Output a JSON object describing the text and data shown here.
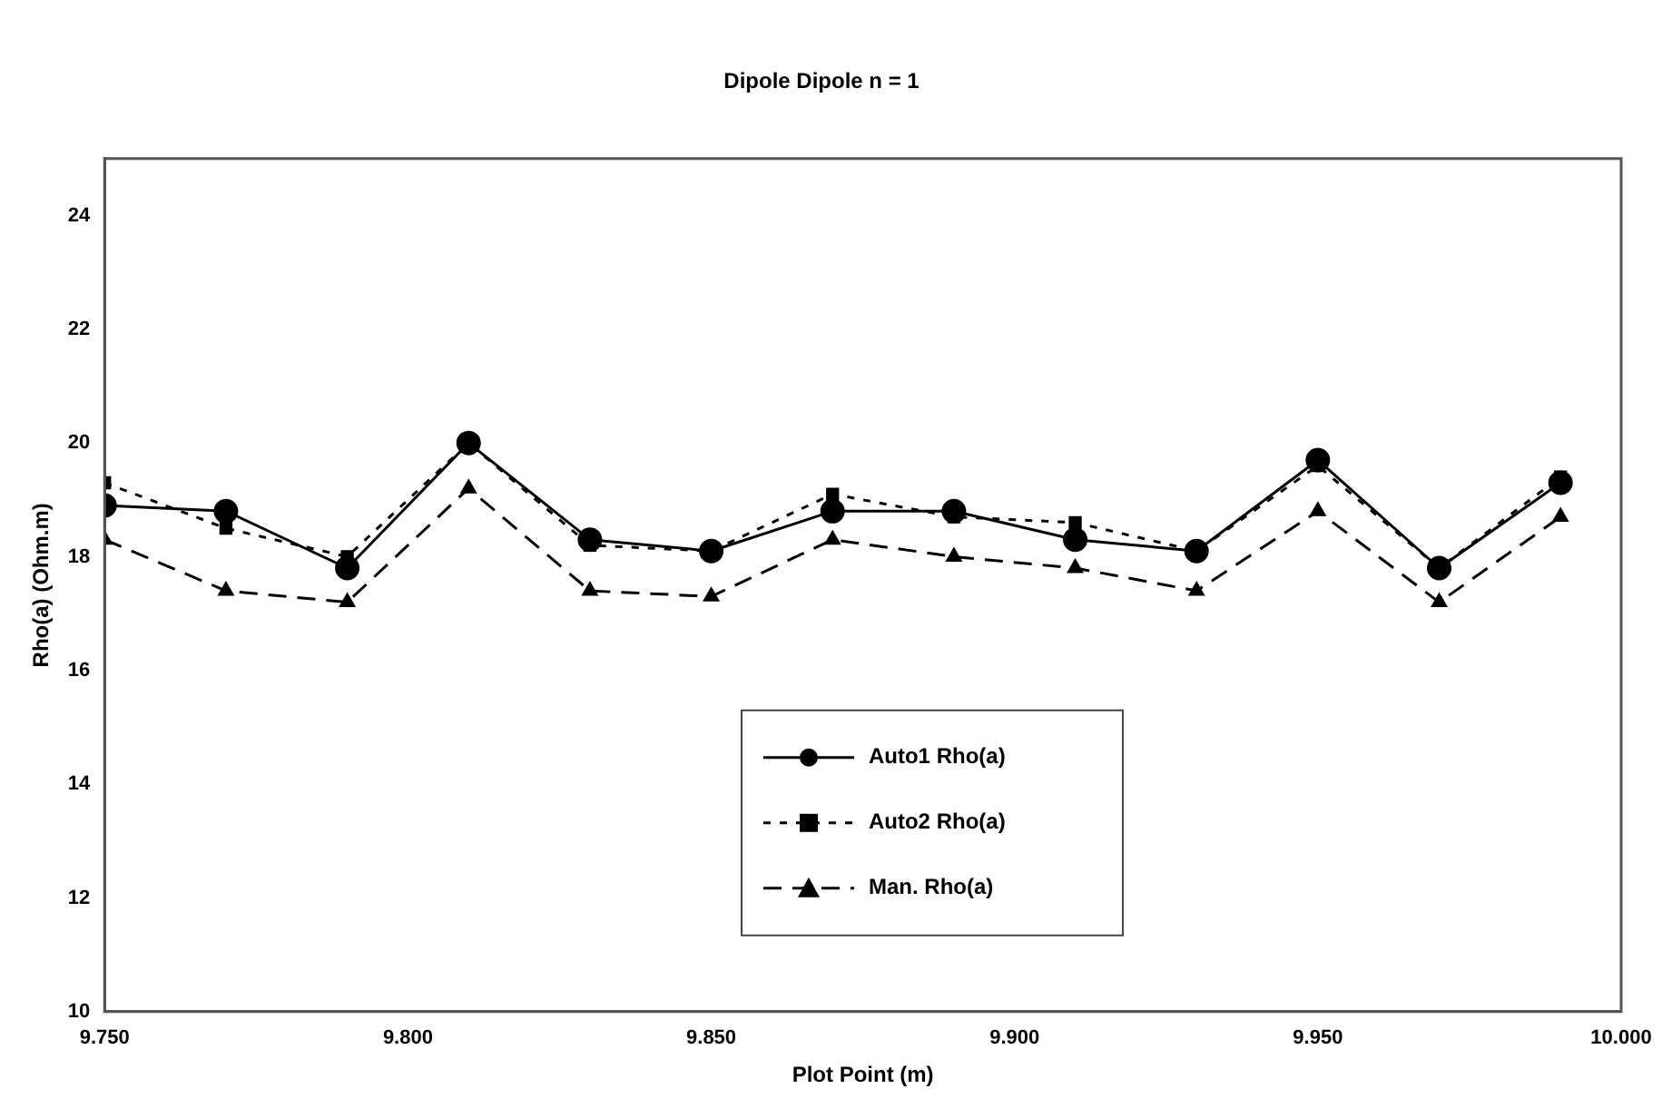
{
  "chart_data": {
    "type": "line",
    "title": "Dipole Dipole n = 1",
    "xlabel": "Plot Point (m)",
    "ylabel": "Rho(a) (Ohm.m)",
    "x": [
      9.75,
      9.77,
      9.79,
      9.81,
      9.83,
      9.85,
      9.87,
      9.89,
      9.91,
      9.93,
      9.95,
      9.97,
      9.99
    ],
    "xlim": [
      9.75,
      10.0
    ],
    "xticks": [
      {
        "value": 9.75,
        "label": "9.750"
      },
      {
        "value": 9.8,
        "label": "9.800"
      },
      {
        "value": 9.85,
        "label": "9.850"
      },
      {
        "value": 9.9,
        "label": "9.900"
      },
      {
        "value": 9.95,
        "label": "9.950"
      },
      {
        "value": 10.0,
        "label": "10.000"
      }
    ],
    "ylim": [
      10,
      25
    ],
    "yticks": [
      10,
      12,
      14,
      16,
      18,
      20,
      22,
      24
    ],
    "grid": false,
    "legend": "bottom",
    "series": [
      {
        "name": "Auto1 Rho(a)",
        "color": "#000000",
        "marker": "circle",
        "line_style": "solid",
        "values": [
          18.9,
          18.8,
          17.8,
          20.0,
          18.3,
          18.1,
          18.8,
          18.8,
          18.3,
          18.1,
          19.7,
          17.8,
          19.3
        ]
      },
      {
        "name": "Auto2 Rho(a)",
        "color": "#000000",
        "marker": "square",
        "line_style": "dotted",
        "values": [
          19.3,
          18.5,
          18.0,
          20.0,
          18.2,
          18.1,
          19.1,
          18.7,
          18.6,
          18.1,
          19.6,
          17.8,
          19.4
        ]
      },
      {
        "name": "Man. Rho(a)",
        "color": "#000000",
        "marker": "triangle",
        "line_style": "dashed",
        "values": [
          18.3,
          17.4,
          17.2,
          19.2,
          17.4,
          17.3,
          18.3,
          18.0,
          17.8,
          17.4,
          18.8,
          17.2,
          18.7
        ]
      }
    ]
  }
}
